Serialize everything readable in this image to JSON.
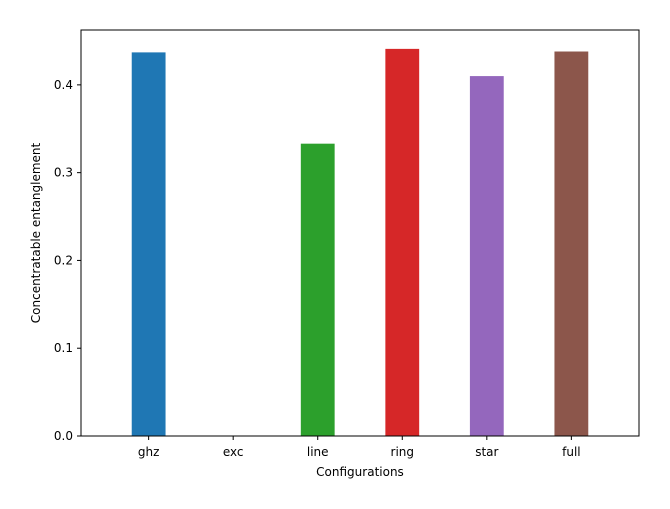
{
  "chart_data": {
    "type": "bar",
    "title": "",
    "xlabel": "Configurations",
    "ylabel": "Concentratable entanglement",
    "categories": [
      "ghz",
      "exc",
      "line",
      "ring",
      "star",
      "full"
    ],
    "values": [
      0.437,
      0.0,
      0.333,
      0.441,
      0.41,
      0.438
    ],
    "colors": [
      "#1f77b4",
      "#ff7f0e",
      "#2ca02c",
      "#d62728",
      "#9467bd",
      "#8c564b"
    ],
    "ylim": [
      0,
      0.4625
    ],
    "yticks": [
      0.0,
      0.1,
      0.2,
      0.3,
      0.4
    ],
    "ytick_labels": [
      "0.0",
      "0.1",
      "0.2",
      "0.3",
      "0.4"
    ],
    "grid": false,
    "legend": "none"
  }
}
